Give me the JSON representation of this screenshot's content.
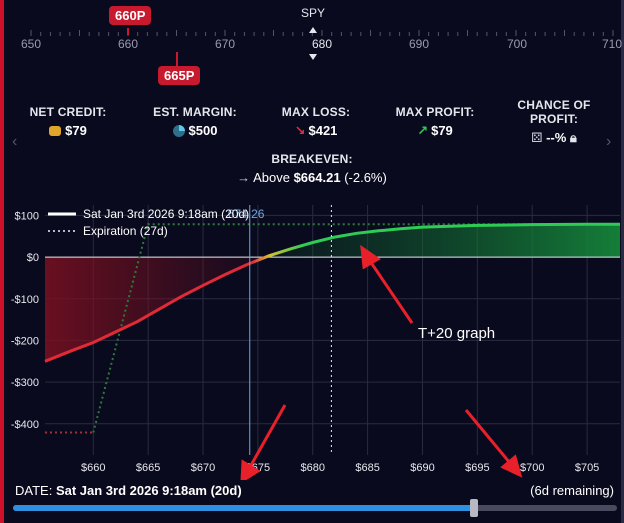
{
  "ruler": {
    "title": "SPY",
    "ticks": [
      "650",
      "660",
      "670",
      "680",
      "690",
      "700",
      "710"
    ],
    "active_tick": "680",
    "strikes": [
      "660P",
      "665P"
    ]
  },
  "stats": {
    "net_credit": {
      "label": "NET CREDIT:",
      "value": "$79"
    },
    "est_margin": {
      "label": "EST. MARGIN:",
      "value": "$500"
    },
    "max_loss": {
      "label": "MAX LOSS:",
      "value": "$421"
    },
    "max_profit": {
      "label": "MAX PROFIT:",
      "value": "$79"
    },
    "chance": {
      "label": "CHANCE OF PROFIT:",
      "value": "--%"
    },
    "breakeven": {
      "label": "BREAKEVEN:",
      "prefix": "Above",
      "value": "$664.21",
      "pct": "(-2.6%)"
    }
  },
  "chart_data": {
    "type": "line",
    "x_ticks": [
      660,
      665,
      670,
      675,
      680,
      685,
      690,
      695,
      700,
      705
    ],
    "x_tick_labels": [
      "$660",
      "$665",
      "$670",
      "$675",
      "$680",
      "$685",
      "$690",
      "$695",
      "$700",
      "$705"
    ],
    "y_ticks": [
      100,
      0,
      -100,
      -200,
      -300,
      -400
    ],
    "y_tick_labels": [
      "$100",
      "$0",
      "-$100",
      "-$200",
      "-$300",
      "-$400"
    ],
    "xlim": [
      655.6,
      708
    ],
    "ylim": [
      -475,
      125
    ],
    "series": [
      {
        "name": "Sat Jan 3rd 2026 9:18am (20d)",
        "x": [
          655.6,
          658,
          660,
          662,
          664,
          666,
          668,
          670,
          672,
          674,
          676,
          678,
          680,
          682,
          684,
          686,
          688,
          690,
          695,
          700,
          705,
          708
        ],
        "y": [
          -250,
          -225,
          -205,
          -180,
          -155,
          -125,
          -95,
          -68,
          -42,
          -18,
          3,
          20,
          35,
          48,
          57,
          63,
          68,
          72,
          76,
          78,
          79,
          79
        ]
      },
      {
        "name": "Expiration (27d)",
        "x": [
          655.6,
          660,
          665,
          708
        ],
        "y": [
          -421,
          -421,
          79,
          79
        ]
      }
    ],
    "cursor_price": 674.26,
    "cursor_label": "674.26",
    "current_price": 681.7,
    "annotation": "T+20 graph"
  },
  "footer": {
    "date_label": "DATE:",
    "date_value": "Sat Jan 3rd 2026 9:18am (20d)",
    "remaining": "(6d remaining)",
    "slider_progress": 0.764
  },
  "colors": {
    "loss": "#e02a36",
    "profit": "#2ecc55",
    "background": "#0a0a1e",
    "accent": "#c81a2e",
    "slider": "#2f8fe0"
  }
}
